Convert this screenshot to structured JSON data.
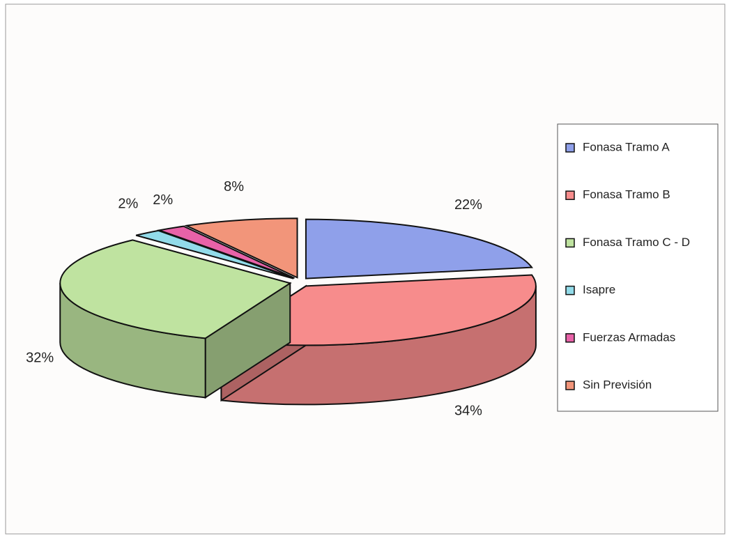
{
  "chart_data": {
    "type": "pie",
    "categories": [
      "Fonasa Tramo A",
      "Fonasa Tramo B",
      "Fonasa Tramo C - D",
      "Isapre",
      "Fuerzas Armadas",
      "Sin Previsión"
    ],
    "values": [
      22,
      34,
      32,
      2,
      2,
      8
    ],
    "value_labels": [
      "22%",
      "34%",
      "32%",
      "2%",
      "2%",
      "8%"
    ],
    "colors": [
      "#8fa0ea",
      "#f78c8c",
      "#bfe3a0",
      "#92dbe9",
      "#e862a8",
      "#f2957a"
    ],
    "legend": "right"
  }
}
